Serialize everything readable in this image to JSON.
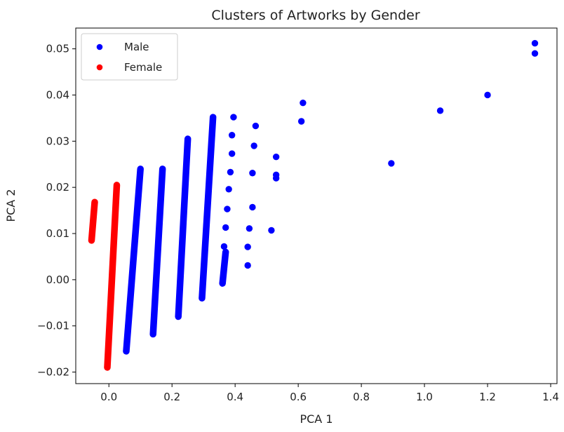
{
  "chart_data": {
    "type": "scatter",
    "title": "Clusters of Artworks by Gender",
    "xlabel": "PCA 1",
    "ylabel": "PCA 2",
    "xlim": [
      -0.105,
      1.42
    ],
    "ylim": [
      -0.0225,
      0.0545
    ],
    "xticks": [
      0.0,
      0.2,
      0.4,
      0.6,
      0.8,
      1.0,
      1.2,
      1.4
    ],
    "xtick_labels": [
      "0.0",
      "0.2",
      "0.4",
      "0.6",
      "0.8",
      "1.0",
      "1.2",
      "1.4"
    ],
    "yticks": [
      -0.02,
      -0.01,
      0.0,
      0.01,
      0.02,
      0.03,
      0.04,
      0.05
    ],
    "ytick_labels": [
      "−0.02",
      "−0.01",
      "0.00",
      "0.01",
      "0.02",
      "0.03",
      "0.04",
      "0.05"
    ],
    "grid": false,
    "legend_position": "top-left",
    "series": [
      {
        "name": "Male",
        "color": "#0000ff",
        "points": [
          [
            1.35,
            0.0512
          ],
          [
            1.35,
            0.049
          ],
          [
            1.2,
            0.04
          ],
          [
            1.05,
            0.0366
          ],
          [
            0.895,
            0.0252
          ],
          [
            0.615,
            0.0383
          ],
          [
            0.61,
            0.0343
          ],
          [
            0.53,
            0.0266
          ],
          [
            0.53,
            0.0227
          ],
          [
            0.53,
            0.022
          ],
          [
            0.515,
            0.0107
          ],
          [
            0.465,
            0.0333
          ],
          [
            0.46,
            0.029
          ],
          [
            0.455,
            0.0231
          ],
          [
            0.455,
            0.0157
          ],
          [
            0.445,
            0.0111
          ],
          [
            0.44,
            0.0071
          ],
          [
            0.44,
            0.0031
          ],
          [
            0.395,
            0.0352
          ],
          [
            0.39,
            0.0313
          ],
          [
            0.39,
            0.0273
          ],
          [
            0.385,
            0.0233
          ],
          [
            0.38,
            0.0196
          ],
          [
            0.375,
            0.0153
          ],
          [
            0.37,
            0.0113
          ],
          [
            0.365,
            0.0072
          ]
        ],
        "strips": [
          {
            "x0": 0.055,
            "y0": -0.0155,
            "x1": 0.1,
            "y1": 0.024
          },
          {
            "x0": 0.14,
            "y0": -0.0118,
            "x1": 0.17,
            "y1": 0.024
          },
          {
            "x0": 0.22,
            "y0": -0.008,
            "x1": 0.25,
            "y1": 0.0305
          },
          {
            "x0": 0.295,
            "y0": -0.004,
            "x1": 0.33,
            "y1": 0.0352
          },
          {
            "x0": 0.36,
            "y0": -0.0008,
            "x1": 0.37,
            "y1": 0.006
          }
        ]
      },
      {
        "name": "Female",
        "color": "#ff0000",
        "points": [],
        "strips": [
          {
            "x0": -0.005,
            "y0": -0.019,
            "x1": 0.025,
            "y1": 0.0205
          },
          {
            "x0": -0.055,
            "y0": 0.0085,
            "x1": -0.045,
            "y1": 0.0168
          }
        ]
      }
    ]
  }
}
